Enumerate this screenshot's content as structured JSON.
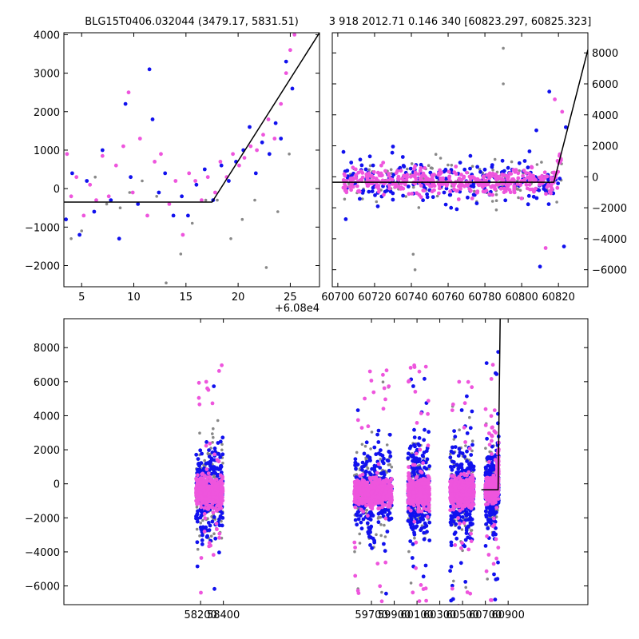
{
  "title_left": "BLG15T0406.032044 (3479.17, 5831.51)",
  "title_right": "3 918 2012.71 0.146 340 [60823.297, 60825.323]",
  "colors": {
    "pink": "#ee55dd",
    "blue": "#1111ee",
    "gray": "#888888",
    "line": "#000000"
  },
  "chart_data": [
    {
      "type": "scatter",
      "xlim": [
        3.3,
        27.8
      ],
      "ylim": [
        -2550,
        4050
      ],
      "x_offset_label": "+6.08e4",
      "xticks": [
        5,
        10,
        15,
        20,
        25
      ],
      "xtick_labels": [
        "5",
        "10",
        "15",
        "20",
        "25"
      ],
      "yticks": [
        -2000,
        -1000,
        0,
        1000,
        2000,
        3000,
        4000
      ],
      "ytick_labels": [
        "−2000",
        "−1000",
        "0",
        "1000",
        "2000",
        "3000",
        "4000"
      ],
      "model_line": {
        "x": [
          3.3,
          17.5,
          27.8
        ],
        "y": [
          -350,
          -350,
          4050
        ]
      },
      "series": [
        {
          "color": "pink",
          "x": [
            3.6,
            4.0,
            4.5,
            5.2,
            5.8,
            6.4,
            7.0,
            7.6,
            8.3,
            9.0,
            9.5,
            9.9,
            10.6,
            11.3,
            12.0,
            12.6,
            13.4,
            14.0,
            14.7,
            15.3,
            15.9,
            16.5,
            17.1,
            17.8,
            18.3,
            18.9,
            19.5,
            20.1,
            20.6,
            21.2,
            21.8,
            22.4,
            22.9,
            23.5,
            24.1,
            24.6,
            25.0,
            25.4
          ],
          "y": [
            900,
            -200,
            300,
            -700,
            100,
            -300,
            850,
            -200,
            600,
            1100,
            2500,
            -100,
            1300,
            -700,
            700,
            900,
            -400,
            200,
            -1200,
            400,
            200,
            -300,
            300,
            -100,
            700,
            300,
            900,
            600,
            800,
            1100,
            1000,
            1400,
            1800,
            1300,
            2200,
            3000,
            3600,
            4000
          ]
        },
        {
          "color": "blue",
          "x": [
            3.5,
            4.1,
            4.8,
            5.5,
            6.2,
            7.0,
            7.8,
            8.6,
            9.2,
            9.7,
            10.4,
            11.5,
            11.8,
            12.4,
            13.0,
            13.8,
            14.6,
            15.2,
            16.0,
            16.8,
            17.6,
            18.4,
            19.1,
            19.8,
            20.5,
            21.1,
            21.7,
            22.3,
            23.0,
            23.6,
            24.1,
            24.6,
            25.2
          ],
          "y": [
            -800,
            400,
            -1200,
            200,
            -600,
            1000,
            -300,
            -1300,
            2200,
            300,
            -400,
            3100,
            1800,
            -100,
            400,
            -700,
            -200,
            -700,
            100,
            500,
            -300,
            600,
            200,
            700,
            1000,
            1600,
            400,
            1200,
            900,
            1700,
            1300,
            3300,
            2600
          ]
        },
        {
          "color": "gray",
          "x": [
            4.0,
            5.0,
            6.3,
            7.4,
            8.7,
            9.6,
            10.8,
            12.2,
            13.1,
            14.5,
            15.6,
            16.9,
            18.0,
            19.3,
            20.4,
            21.6,
            22.7,
            23.8,
            24.9
          ],
          "y": [
            -1300,
            -1100,
            300,
            -400,
            -500,
            -100,
            200,
            -200,
            -2450,
            -1700,
            -900,
            -300,
            -300,
            -1300,
            -800,
            -300,
            -2050,
            -600,
            900
          ]
        }
      ]
    },
    {
      "type": "scatter",
      "xlim": [
        60697,
        60836
      ],
      "ylim": [
        -7100,
        9300
      ],
      "xticks": [
        60700,
        60720,
        60740,
        60760,
        60780,
        60800,
        60820
      ],
      "xtick_labels": [
        "60700",
        "60720",
        "60740",
        "60760",
        "60780",
        "60800",
        "60820"
      ],
      "yticks": [
        -6000,
        -4000,
        -2000,
        0,
        2000,
        4000,
        6000,
        8000
      ],
      "ytick_labels": [
        "−6000",
        "−4000",
        "−2000",
        "0",
        "2000",
        "4000",
        "6000",
        "8000"
      ],
      "model_line": {
        "x": [
          60697,
          60817.5,
          60836
        ],
        "y": [
          -350,
          -350,
          8200
        ]
      },
      "cluster": {
        "x_range": [
          60703,
          60822
        ],
        "y_center": -300,
        "y_spread": 700
      },
      "extra_points": [
        {
          "x": 60790,
          "y": 8300,
          "color": "gray"
        },
        {
          "x": 60815,
          "y": 5500,
          "color": "blue"
        },
        {
          "x": 60818,
          "y": 5000,
          "color": "pink"
        },
        {
          "x": 60822,
          "y": 4200,
          "color": "pink"
        },
        {
          "x": 60824,
          "y": 3200,
          "color": "blue"
        },
        {
          "x": 60808,
          "y": 3000,
          "color": "blue"
        },
        {
          "x": 60741,
          "y": -5000,
          "color": "gray"
        },
        {
          "x": 60742,
          "y": -6000,
          "color": "gray"
        },
        {
          "x": 60810,
          "y": -5800,
          "color": "blue"
        },
        {
          "x": 60823,
          "y": -4500,
          "color": "blue"
        },
        {
          "x": 60790,
          "y": 6000,
          "color": "gray"
        },
        {
          "x": 60813,
          "y": -4600,
          "color": "pink"
        }
      ]
    },
    {
      "type": "scatter",
      "xlim": [
        57000,
        61600
      ],
      "ylim": [
        -7100,
        9700
      ],
      "xticks": [
        58200,
        58400,
        59700,
        59900,
        60100,
        60300,
        60500,
        60700,
        60900
      ],
      "xtick_labels": [
        "58200",
        "58400",
        "59700",
        "59900",
        "60100",
        "60300",
        "60500",
        "60700",
        "60900"
      ],
      "yticks": [
        -6000,
        -4000,
        -2000,
        0,
        2000,
        4000,
        6000,
        8000
      ],
      "ytick_labels": [
        "−6000",
        "−4000",
        "−2000",
        "0",
        "2000",
        "4000",
        "6000",
        "8000"
      ],
      "seasons": [
        {
          "x_range": [
            58160,
            58395
          ],
          "y_center": -500,
          "y_spread": 900
        },
        {
          "x_range": [
            59550,
            59880
          ],
          "y_center": -500,
          "y_spread": 900
        },
        {
          "x_range": [
            60020,
            60210
          ],
          "y_center": -500,
          "y_spread": 900
        },
        {
          "x_range": [
            60390,
            60600
          ],
          "y_center": -500,
          "y_spread": 900
        },
        {
          "x_range": [
            60700,
            60818
          ],
          "y_center": -400,
          "y_spread": 700
        }
      ],
      "model_line": {
        "x": [
          60665,
          60812,
          60830
        ],
        "y": [
          -350,
          -350,
          9700
        ]
      }
    }
  ]
}
